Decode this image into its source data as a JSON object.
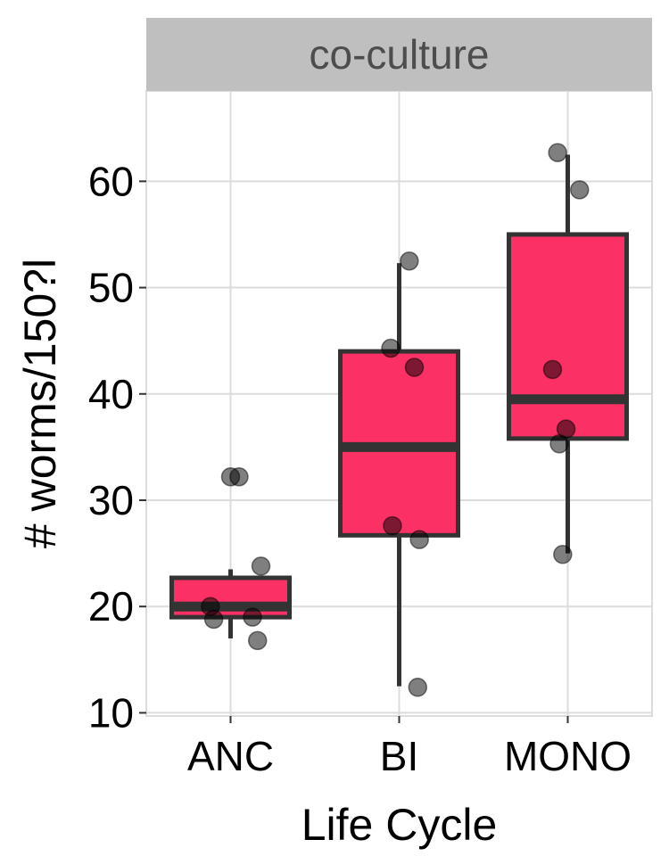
{
  "chart_data": {
    "type": "box",
    "facet_label": "co-culture",
    "xlabel": "Life Cycle",
    "ylabel": "# worms/150?l",
    "categories": [
      "ANC",
      "BI",
      "MONO"
    ],
    "ylim": [
      9.7,
      68.5
    ],
    "yticks": [
      10,
      20,
      30,
      40,
      50,
      60
    ],
    "grid": true,
    "boxes": [
      {
        "category": "ANC",
        "q1": 19.0,
        "median": 20.0,
        "q3": 22.7,
        "whisker_low": 17.0,
        "whisker_high": 23.5
      },
      {
        "category": "BI",
        "q1": 26.7,
        "median": 35.0,
        "q3": 44.0,
        "whisker_low": 12.5,
        "whisker_high": 52.3
      },
      {
        "category": "MONO",
        "q1": 35.8,
        "median": 39.5,
        "q3": 55.0,
        "whisker_low": 25.0,
        "whisker_high": 62.5
      }
    ],
    "points": [
      {
        "category": "ANC",
        "x_offset": 0.05,
        "value": 32.2
      },
      {
        "category": "ANC",
        "x_offset": 0.18,
        "value": 23.8
      },
      {
        "category": "ANC",
        "x_offset": -0.12,
        "value": 20.0
      },
      {
        "category": "ANC",
        "x_offset": -0.1,
        "value": 18.8
      },
      {
        "category": "ANC",
        "x_offset": 0.13,
        "value": 19.0
      },
      {
        "category": "ANC",
        "x_offset": 0.16,
        "value": 16.8
      },
      {
        "category": "ANC",
        "x_offset": 0.0,
        "value": 32.2
      },
      {
        "category": "BI",
        "x_offset": 0.06,
        "value": 52.5
      },
      {
        "category": "BI",
        "x_offset": -0.05,
        "value": 44.3
      },
      {
        "category": "BI",
        "x_offset": 0.09,
        "value": 42.5
      },
      {
        "category": "BI",
        "x_offset": -0.04,
        "value": 27.6
      },
      {
        "category": "BI",
        "x_offset": 0.12,
        "value": 26.3
      },
      {
        "category": "BI",
        "x_offset": 0.11,
        "value": 12.4
      },
      {
        "category": "MONO",
        "x_offset": -0.06,
        "value": 62.7
      },
      {
        "category": "MONO",
        "x_offset": 0.07,
        "value": 59.2
      },
      {
        "category": "MONO",
        "x_offset": -0.09,
        "value": 42.3
      },
      {
        "category": "MONO",
        "x_offset": -0.01,
        "value": 36.7
      },
      {
        "category": "MONO",
        "x_offset": -0.05,
        "value": 35.3
      },
      {
        "category": "MONO",
        "x_offset": -0.03,
        "value": 24.9
      }
    ],
    "colors": {
      "box_fill": "#fb3064",
      "box_stroke": "#333333",
      "point_fill": "#000000",
      "strip_fill": "#bfbfbf",
      "grid": "#dcdcdc"
    }
  }
}
